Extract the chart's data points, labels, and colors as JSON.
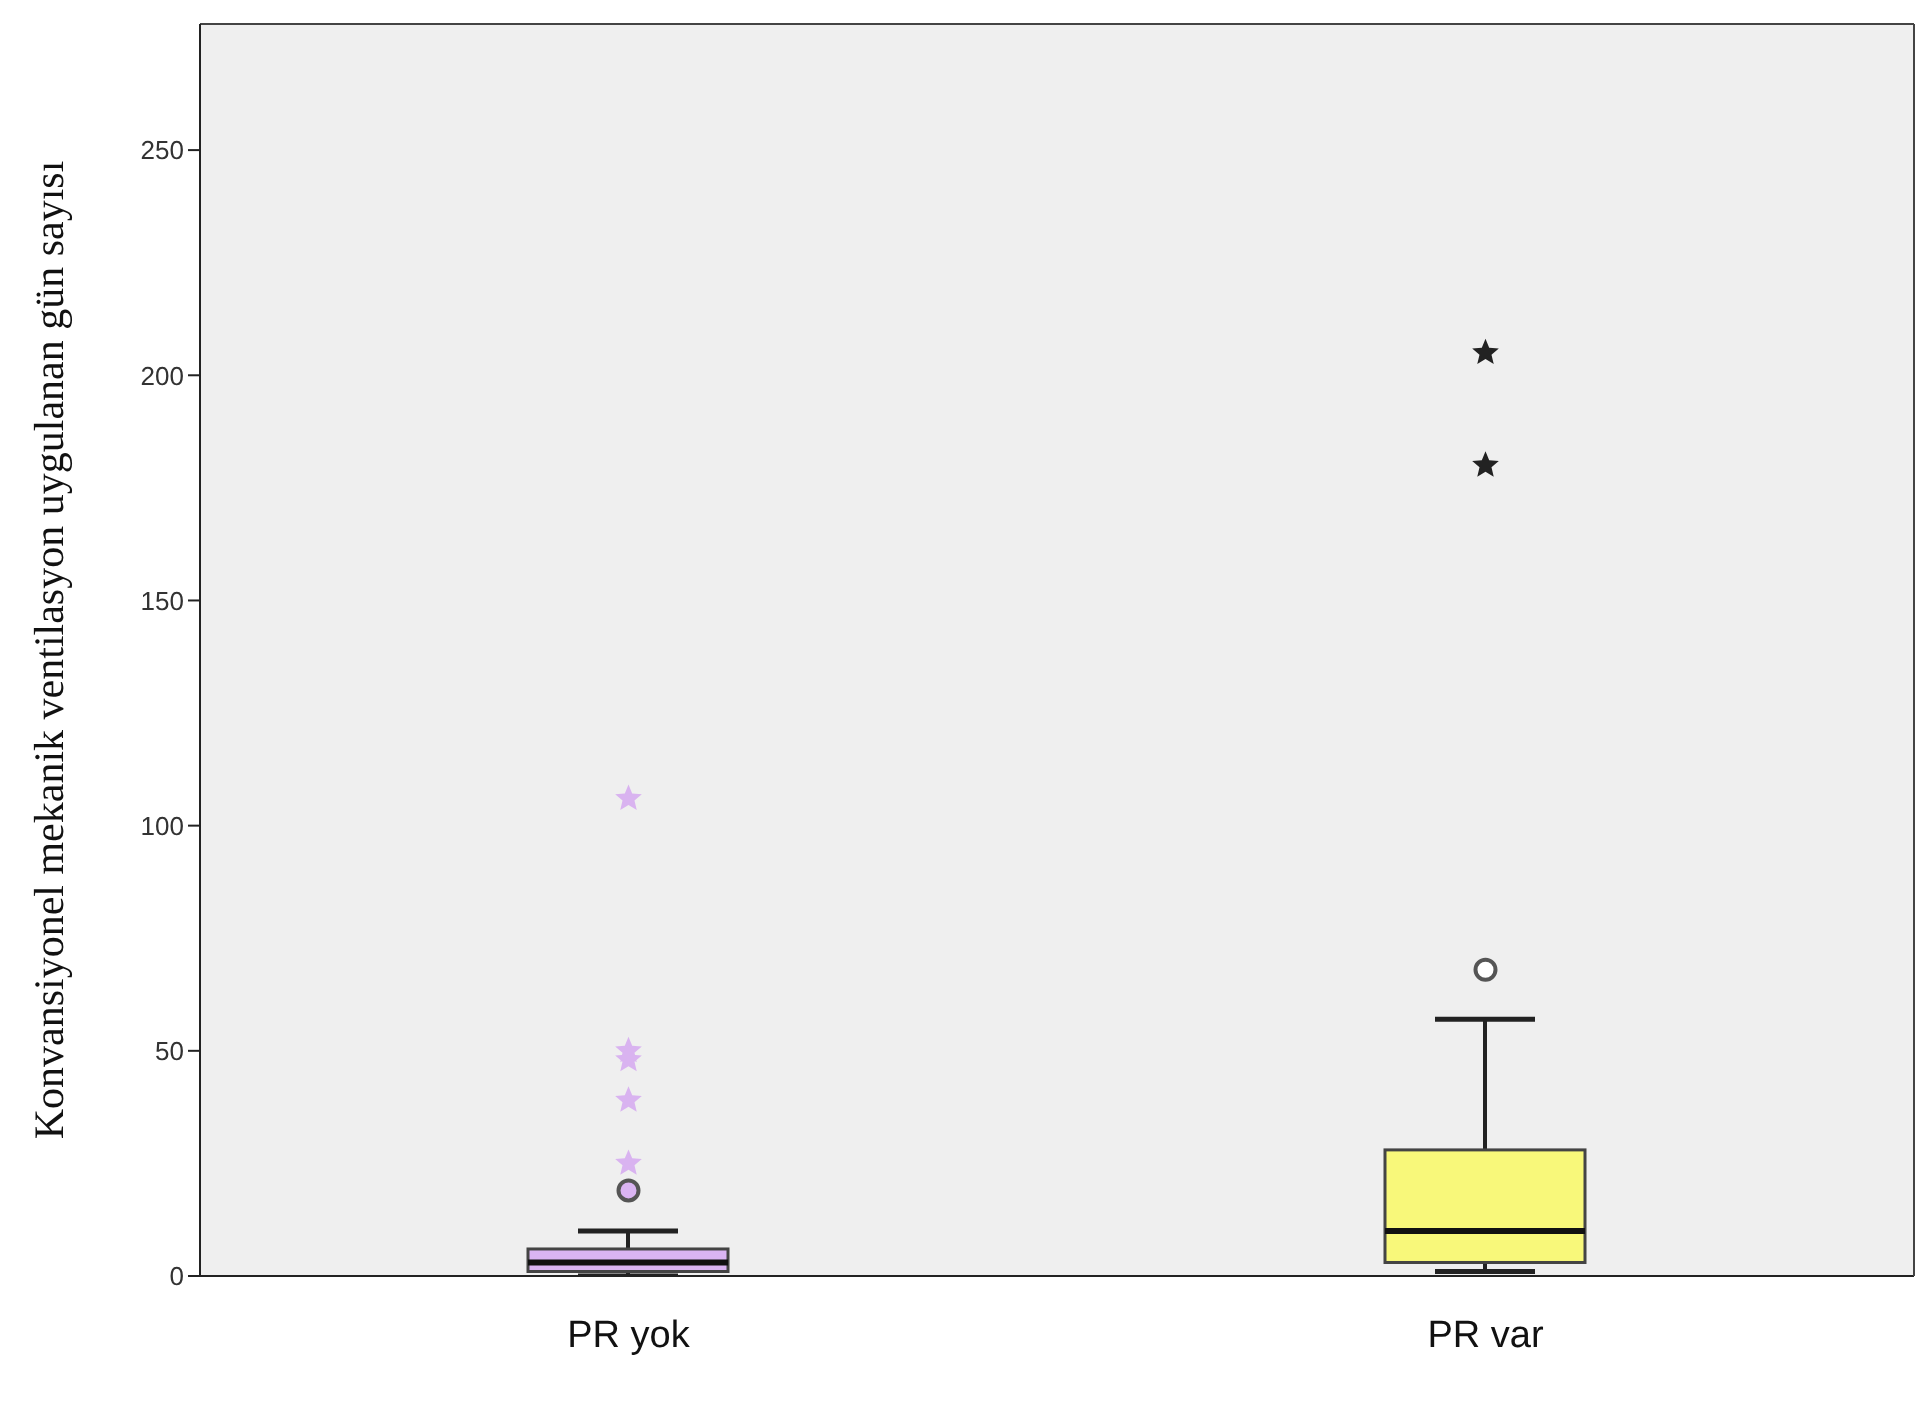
{
  "chart_data": {
    "type": "box",
    "ylabel": "Konvansiyonel mekanik ventilasyon  uygulanan gün sayısı",
    "categories": [
      "PR yok",
      "PR var"
    ],
    "colors": [
      "#dab4f2",
      "#f8f87a"
    ],
    "boxes": [
      {
        "low": 0,
        "q1": 1,
        "median": 3,
        "q3": 6,
        "high": 10,
        "outliers": [
          19
        ]
      },
      {
        "low": 1,
        "q1": 3,
        "median": 10,
        "q3": 28,
        "high": 57,
        "outliers": [
          68
        ]
      }
    ],
    "series": [
      {
        "type": "scatter",
        "marker": "star",
        "x": [
          "PR yok",
          "PR yok",
          "PR yok",
          "PR yok",
          "PR yok",
          "PR var",
          "PR var"
        ],
        "values": [
          25,
          39,
          48,
          50,
          106,
          180,
          205
        ],
        "colors": [
          "#d9b3f0",
          "#d9b3f0",
          "#d9b3f0",
          "#d9b3f0",
          "#d9b3f0",
          "#222222",
          "#222222"
        ]
      }
    ],
    "ylim": [
      0,
      278
    ],
    "yticks": [
      0,
      50,
      100,
      150,
      200,
      250
    ],
    "grid": false,
    "legend": false
  }
}
